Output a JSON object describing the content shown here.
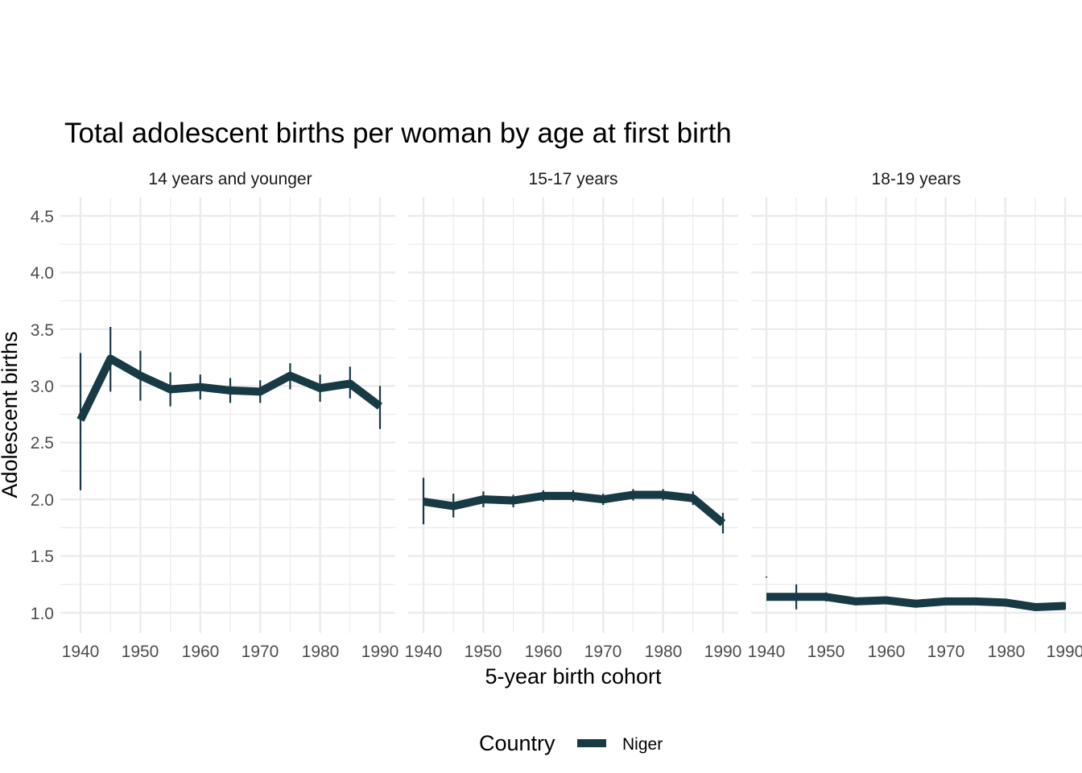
{
  "chart_data": {
    "type": "line",
    "title": "Total adolescent births per woman by age at first birth",
    "xlabel": "5-year birth cohort",
    "ylabel": "Adolescent births",
    "xlim": [
      1940,
      1990
    ],
    "ylim": [
      0.88,
      4.65
    ],
    "x_ticks": [
      1940,
      1950,
      1960,
      1970,
      1980,
      1990
    ],
    "y_ticks": [
      1.0,
      1.5,
      2.0,
      2.5,
      3.0,
      3.5,
      4.0,
      4.5
    ],
    "y_tick_labels": [
      "1.0",
      "1.5",
      "2.0",
      "2.5",
      "3.0",
      "3.5",
      "4.0",
      "4.5"
    ],
    "grid": true,
    "legend": {
      "title": "Country",
      "position": "bottom",
      "entries": [
        "Niger"
      ]
    },
    "colors": {
      "Niger": "#173a45",
      "grid": "#ebebeb"
    },
    "x": [
      1940,
      1945,
      1950,
      1955,
      1960,
      1965,
      1970,
      1975,
      1980,
      1985,
      1990
    ],
    "facets": [
      {
        "label": "14 years and younger",
        "series": [
          {
            "name": "Niger",
            "values": [
              2.7,
              3.24,
              3.09,
              2.97,
              2.99,
              2.96,
              2.95,
              3.09,
              2.98,
              3.02,
              2.82
            ],
            "lower": [
              2.08,
              2.95,
              2.87,
              2.82,
              2.88,
              2.85,
              2.85,
              2.97,
              2.86,
              2.89,
              2.62
            ],
            "upper": [
              3.29,
              3.52,
              3.31,
              3.12,
              3.1,
              3.07,
              3.05,
              3.2,
              3.1,
              3.17,
              3.0
            ]
          }
        ]
      },
      {
        "label": "15-17 years",
        "series": [
          {
            "name": "Niger",
            "values": [
              1.98,
              1.94,
              2.0,
              1.99,
              2.03,
              2.03,
              2.0,
              2.04,
              2.04,
              2.01,
              1.79
            ],
            "lower": [
              1.78,
              1.84,
              1.93,
              1.93,
              1.98,
              1.98,
              1.95,
              1.99,
              1.99,
              1.95,
              1.7
            ],
            "upper": [
              2.19,
              2.05,
              2.07,
              2.04,
              2.08,
              2.08,
              2.05,
              2.09,
              2.09,
              2.07,
              1.88
            ]
          }
        ]
      },
      {
        "label": "18-19 years",
        "series": [
          {
            "name": "Niger",
            "values": [
              1.14,
              1.14,
              1.14,
              1.1,
              1.11,
              1.08,
              1.1,
              1.1,
              1.09,
              1.05,
              1.06
            ],
            "lower": [
              1.31,
              1.03,
              1.1,
              1.07,
              1.08,
              1.05,
              1.07,
              1.07,
              1.06,
              1.03,
              1.03
            ],
            "upper": [
              1.32,
              1.25,
              1.18,
              1.13,
              1.14,
              1.11,
              1.13,
              1.13,
              1.12,
              1.08,
              1.09
            ]
          }
        ]
      }
    ]
  }
}
